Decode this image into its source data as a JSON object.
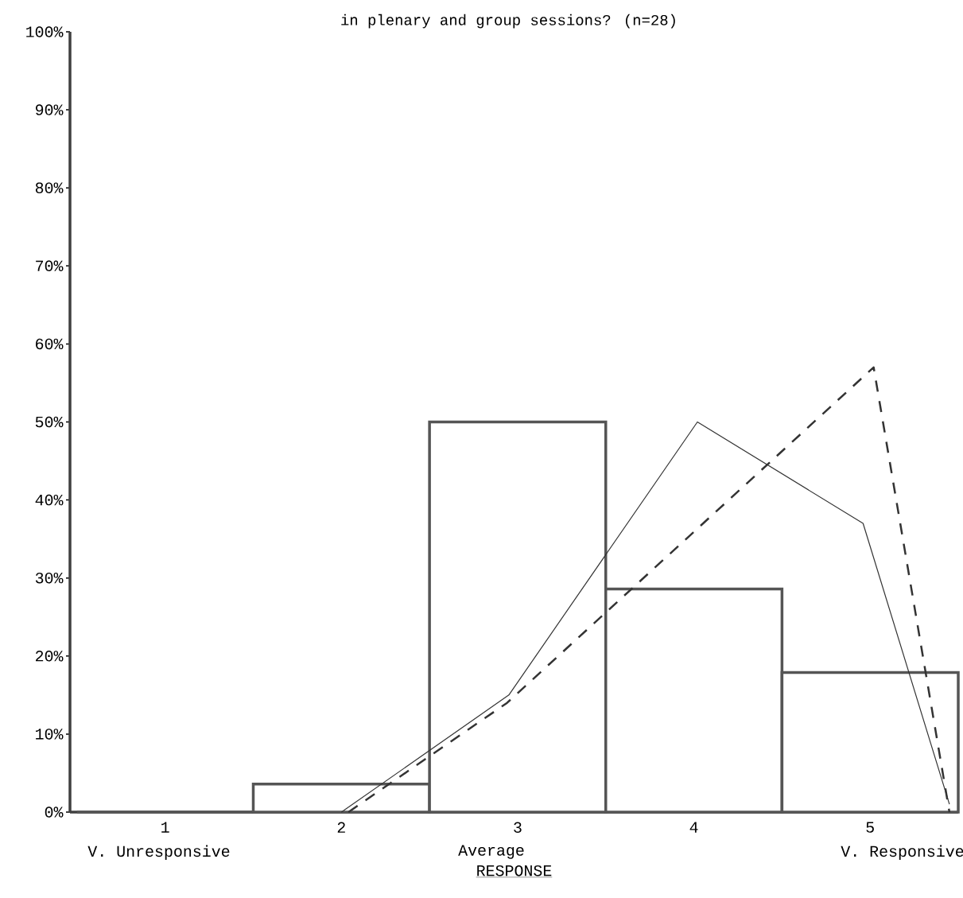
{
  "chart_data": {
    "type": "bar",
    "title": "in plenary and group sessions?  (n=28)",
    "xlabel": "RESPONSE",
    "x": [
      1,
      2,
      3,
      4,
      5
    ],
    "xlim": [
      0.46,
      5.5
    ],
    "xticks": [
      1,
      2,
      3,
      4,
      5
    ],
    "ylim": [
      0,
      100
    ],
    "yticks": [
      {
        "value": 0,
        "label": "0%"
      },
      {
        "value": 10,
        "label": "10%"
      },
      {
        "value": 20,
        "label": "20%"
      },
      {
        "value": 30,
        "label": "30%"
      },
      {
        "value": 40,
        "label": "40%"
      },
      {
        "value": 50,
        "label": "50%"
      },
      {
        "value": 60,
        "label": "60%"
      },
      {
        "value": 70,
        "label": "70%"
      },
      {
        "value": 80,
        "label": "80%"
      },
      {
        "value": 90,
        "label": "90%"
      },
      {
        "value": 100,
        "label": "100%"
      }
    ],
    "annotations": [
      "V. Unresponsive",
      "Average",
      "V. Responsive"
    ],
    "series": [
      {
        "color": "#555555",
        "values": [
          0,
          3.6,
          50,
          28.6,
          17.9
        ]
      },
      {
        "type": "line",
        "line_style": "solid",
        "color": "#333333",
        "x": [
          2.0,
          2.95,
          4.02,
          4.96,
          5.45
        ],
        "values": [
          0,
          15,
          50,
          37,
          1
        ]
      },
      {
        "type": "line",
        "line_style": "dashed",
        "color": "#333333",
        "x": [
          2.04,
          2.94,
          5.02,
          5.45
        ],
        "values": [
          0,
          14,
          57,
          0
        ]
      }
    ],
    "grid": false
  }
}
